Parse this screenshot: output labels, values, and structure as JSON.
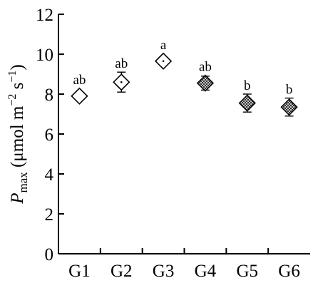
{
  "chart_data": {
    "type": "scatter",
    "categories": [
      "G1",
      "G2",
      "G3",
      "G4",
      "G5",
      "G6"
    ],
    "values": [
      7.9,
      8.6,
      9.65,
      8.55,
      7.55,
      7.35
    ],
    "errors": [
      0.2,
      0.5,
      0.15,
      0.35,
      0.45,
      0.45
    ],
    "significance_letters": [
      "ab",
      "ab",
      "a",
      "ab",
      "b",
      "b"
    ],
    "marker_fill": [
      "open",
      "open-dotted",
      "open-dotted",
      "hatched",
      "hatched",
      "hatched"
    ],
    "ylim": [
      0,
      12
    ],
    "yticks": [
      "0",
      "2",
      "4",
      "6",
      "8",
      "10",
      "12"
    ],
    "ylabel": {
      "symbol": "P",
      "subscript": "max",
      "units_open": " (μmol m",
      "exp1": "−2",
      "units_mid": " s",
      "exp2": "−1",
      "units_close": ")"
    },
    "xlabel": "",
    "title": "",
    "grid": false,
    "legend": "none"
  }
}
